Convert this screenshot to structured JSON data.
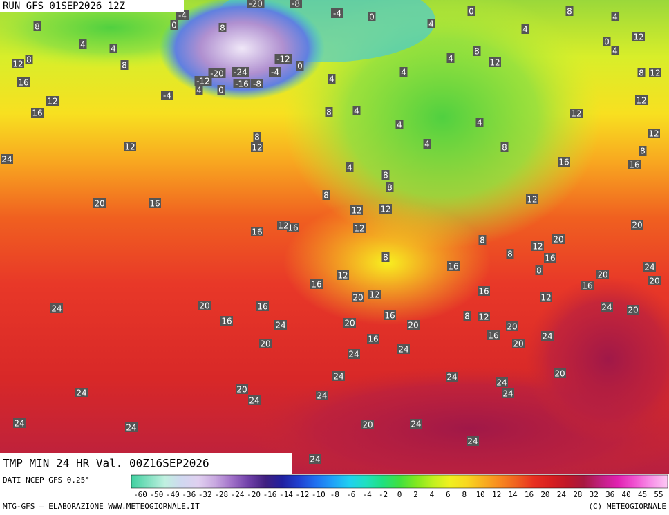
{
  "header": {
    "run": "RUN GFS 01SEP2026 12Z"
  },
  "footer": {
    "title": "TMP MIN 24 HR Val. 00Z16SEP2026",
    "source": "DATI NCEP GFS 0.25°",
    "credit": "MTG-GFS — ELABORAZIONE WWW.METEOGIORNALE.IT",
    "copyright": "(C) METEOGIORNALE"
  },
  "colorbar": {
    "labels": [
      -60,
      -50,
      -40,
      -36,
      -32,
      -28,
      -24,
      -20,
      -16,
      -14,
      -12,
      -10,
      -8,
      -6,
      -4,
      -2,
      0,
      2,
      4,
      6,
      8,
      10,
      12,
      14,
      16,
      20,
      24,
      28,
      32,
      36,
      40,
      45,
      55
    ],
    "colors": [
      "#40d0a0",
      "#80e0c0",
      "#c0f0e0",
      "#d0d8f0",
      "#e0d0f0",
      "#c8a8e0",
      "#a070c8",
      "#7040a8",
      "#402080",
      "#2020a0",
      "#2040d0",
      "#2070f0",
      "#20a0f8",
      "#20d0f0",
      "#20e0c0",
      "#20e080",
      "#40e040",
      "#80e820",
      "#c0f020",
      "#f0f020",
      "#f8d820",
      "#f8b020",
      "#f88820",
      "#f06020",
      "#e83020",
      "#d82020",
      "#c01828",
      "#a81840",
      "#c02080",
      "#e020b0",
      "#f050d0",
      "#f890e8",
      "#fcc8f4"
    ]
  },
  "map_labels": [
    8,
    4,
    4,
    8,
    12,
    8,
    16,
    12,
    16,
    24,
    12,
    20,
    16,
    16,
    16,
    12,
    20,
    24,
    16,
    16,
    24,
    20,
    24,
    24,
    24,
    20,
    24,
    24,
    24,
    24,
    16,
    20,
    20,
    12,
    16,
    12,
    16,
    20,
    24,
    20,
    24,
    24,
    24,
    24,
    24,
    24,
    20,
    24,
    20,
    16,
    20,
    12,
    8,
    16,
    12,
    24,
    20,
    16,
    20,
    8,
    8,
    16,
    12,
    20,
    20,
    24,
    20,
    16,
    8,
    8,
    12,
    12,
    12,
    8,
    8,
    8,
    4,
    8,
    4,
    4,
    4,
    8,
    4,
    12,
    16,
    16,
    12,
    12,
    12,
    8,
    12,
    8,
    12,
    0,
    4,
    4,
    8,
    4,
    12,
    8,
    4,
    4,
    4,
    4,
    0,
    -4,
    0,
    8,
    12,
    -4,
    0,
    8,
    -20,
    -8,
    -20,
    -12,
    -24,
    -16,
    -8,
    -4,
    -12,
    0,
    -4,
    4,
    0
  ]
}
